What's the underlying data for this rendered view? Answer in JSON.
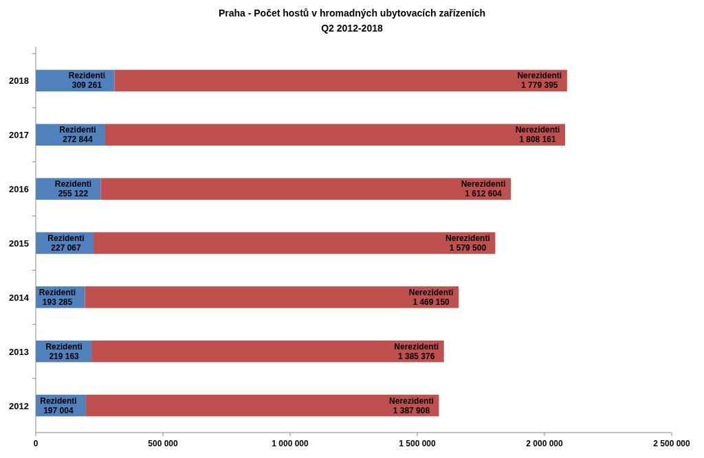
{
  "chart_data": {
    "type": "bar",
    "orientation": "horizontal",
    "stacked": true,
    "title": "Praha - Počet hostů v hromadných ubytovacích zařízeních",
    "subtitle": "Q2 2012-2018",
    "categories": [
      "2018",
      "2017",
      "2016",
      "2015",
      "2014",
      "2013",
      "2012"
    ],
    "series": [
      {
        "name": "Rezidenti",
        "color": "#4f81bd",
        "values": [
          309261,
          272844,
          255122,
          227067,
          193285,
          219163,
          197004
        ],
        "value_labels": [
          "309 261",
          "272 844",
          "255 122",
          "227 067",
          "193 285",
          "219 163",
          "197 004"
        ]
      },
      {
        "name": "Nerezidenti",
        "color": "#c0504d",
        "values": [
          1779395,
          1808161,
          1612604,
          1579500,
          1469150,
          1385376,
          1387908
        ],
        "value_labels": [
          "1 779 395",
          "1 808 161",
          "1 612 604",
          "1 579 500",
          "1 469 150",
          "1 385 376",
          "1 387 908"
        ]
      }
    ],
    "xlim": [
      0,
      2500000
    ],
    "xticks": [
      0,
      {
        "value": 500000,
        "label": "500 000"
      },
      {
        "value": 1000000,
        "label": "1 000 000"
      },
      {
        "value": 1500000,
        "label": "1 500 000"
      },
      {
        "value": 2000000,
        "label": "2 000 000"
      },
      {
        "value": 2500000,
        "label": "2 500 000"
      }
    ],
    "grid": false
  }
}
